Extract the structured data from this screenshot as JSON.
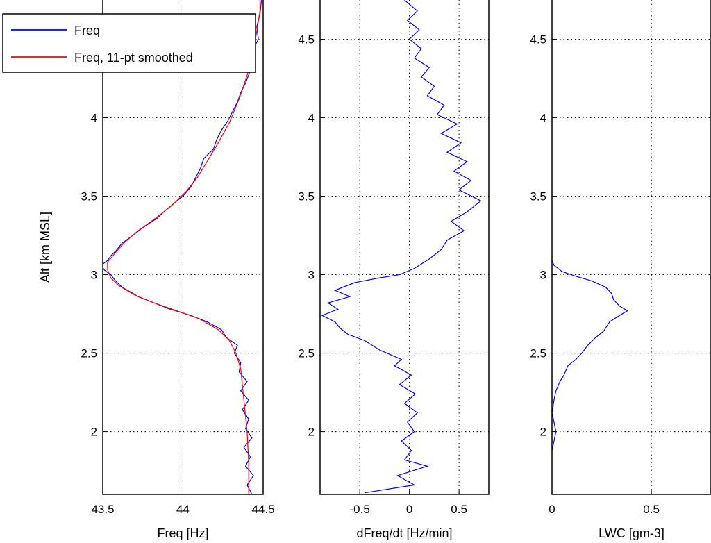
{
  "chart_data": [
    {
      "type": "line",
      "xlabel": "Freq [Hz]",
      "ylabel": "Alt [km MSL]",
      "xlim": [
        43.5,
        44.5
      ],
      "ylim": [
        1.6,
        4.75
      ],
      "xticks": [
        43.5,
        44,
        44.5
      ],
      "xtick_labels": [
        "43.5",
        "44",
        "44.5"
      ],
      "yticks": [
        2,
        2.5,
        3,
        3.5,
        4,
        4.5
      ],
      "ytick_labels": [
        "2",
        "2.5",
        "3",
        "3.5",
        "4",
        "4.5"
      ],
      "grid": true,
      "legend": {
        "placement": "top-left",
        "entries": [
          "Freq",
          "Freq, 11-pt smoothed"
        ]
      },
      "series": [
        {
          "name": "Freq",
          "color": "#0000ff",
          "points": [
            [
              44.43,
              1.6
            ],
            [
              44.4,
              1.66
            ],
            [
              44.44,
              1.72
            ],
            [
              44.39,
              1.78
            ],
            [
              44.42,
              1.84
            ],
            [
              44.38,
              1.9
            ],
            [
              44.43,
              1.96
            ],
            [
              44.39,
              2.02
            ],
            [
              44.41,
              2.08
            ],
            [
              44.37,
              2.14
            ],
            [
              44.41,
              2.2
            ],
            [
              44.36,
              2.26
            ],
            [
              44.4,
              2.32
            ],
            [
              44.35,
              2.38
            ],
            [
              44.36,
              2.44
            ],
            [
              44.32,
              2.5
            ],
            [
              44.34,
              2.55
            ],
            [
              44.27,
              2.6
            ],
            [
              44.24,
              2.65
            ],
            [
              44.15,
              2.7
            ],
            [
              44.05,
              2.74
            ],
            [
              43.92,
              2.78
            ],
            [
              43.82,
              2.82
            ],
            [
              43.72,
              2.86
            ],
            [
              43.69,
              2.88
            ],
            [
              43.62,
              2.92
            ],
            [
              43.58,
              2.96
            ],
            [
              43.55,
              3.0
            ],
            [
              43.51,
              3.03
            ],
            [
              43.49,
              3.06
            ],
            [
              43.53,
              3.09
            ],
            [
              43.55,
              3.12
            ],
            [
              43.58,
              3.15
            ],
            [
              43.62,
              3.2
            ],
            [
              43.7,
              3.26
            ],
            [
              43.75,
              3.3
            ],
            [
              43.84,
              3.36
            ],
            [
              43.88,
              3.4
            ],
            [
              43.95,
              3.46
            ],
            [
              44.0,
              3.5
            ],
            [
              44.05,
              3.56
            ],
            [
              44.08,
              3.62
            ],
            [
              44.11,
              3.68
            ],
            [
              44.13,
              3.74
            ],
            [
              44.19,
              3.8
            ],
            [
              44.21,
              3.86
            ],
            [
              44.24,
              3.92
            ],
            [
              44.28,
              3.98
            ],
            [
              44.31,
              4.04
            ],
            [
              44.34,
              4.1
            ],
            [
              44.36,
              4.16
            ],
            [
              44.39,
              4.22
            ],
            [
              44.42,
              4.3
            ],
            [
              44.44,
              4.36
            ],
            [
              44.43,
              4.42
            ],
            [
              44.47,
              4.5
            ],
            [
              44.46,
              4.58
            ],
            [
              44.48,
              4.66
            ],
            [
              44.49,
              4.75
            ]
          ]
        },
        {
          "name": "Freq, 11-pt smoothed",
          "color": "#ff0000",
          "points": [
            [
              44.41,
              1.6
            ],
            [
              44.41,
              1.8
            ],
            [
              44.4,
              2.0
            ],
            [
              44.38,
              2.2
            ],
            [
              44.36,
              2.4
            ],
            [
              44.33,
              2.5
            ],
            [
              44.29,
              2.58
            ],
            [
              44.22,
              2.65
            ],
            [
              44.1,
              2.72
            ],
            [
              43.96,
              2.77
            ],
            [
              43.82,
              2.82
            ],
            [
              43.7,
              2.87
            ],
            [
              43.6,
              2.93
            ],
            [
              43.55,
              2.98
            ],
            [
              43.53,
              3.03
            ],
            [
              43.53,
              3.08
            ],
            [
              43.57,
              3.13
            ],
            [
              43.63,
              3.2
            ],
            [
              43.72,
              3.28
            ],
            [
              43.83,
              3.36
            ],
            [
              43.93,
              3.44
            ],
            [
              44.02,
              3.53
            ],
            [
              44.09,
              3.62
            ],
            [
              44.15,
              3.72
            ],
            [
              44.22,
              3.84
            ],
            [
              44.29,
              3.97
            ],
            [
              44.35,
              4.12
            ],
            [
              44.4,
              4.27
            ],
            [
              44.44,
              4.42
            ],
            [
              44.46,
              4.55
            ],
            [
              44.48,
              4.68
            ],
            [
              44.48,
              4.75
            ]
          ]
        }
      ]
    },
    {
      "type": "line",
      "xlabel": "dFreq/dt [Hz/min]",
      "ylabel": "",
      "xlim": [
        -0.9,
        0.8
      ],
      "ylim": [
        1.6,
        4.75
      ],
      "xticks": [
        -0.5,
        0,
        0.5
      ],
      "xtick_labels": [
        "-0.5",
        "0",
        "0.5"
      ],
      "yticks": [
        2,
        2.5,
        3,
        3.5,
        4,
        4.5
      ],
      "ytick_labels": [
        "2",
        "2.5",
        "3",
        "3.5",
        "4",
        "4.5"
      ],
      "grid": true,
      "series": [
        {
          "color": "#0000ff",
          "points": [
            [
              -0.45,
              1.61
            ],
            [
              0.05,
              1.66
            ],
            [
              -0.12,
              1.72
            ],
            [
              0.18,
              1.78
            ],
            [
              -0.05,
              1.82
            ],
            [
              0.02,
              1.88
            ],
            [
              -0.08,
              1.94
            ],
            [
              0.05,
              2.0
            ],
            [
              -0.02,
              2.06
            ],
            [
              0.08,
              2.12
            ],
            [
              -0.05,
              2.18
            ],
            [
              0.06,
              2.24
            ],
            [
              -0.1,
              2.3
            ],
            [
              0.02,
              2.36
            ],
            [
              -0.15,
              2.42
            ],
            [
              -0.08,
              2.46
            ],
            [
              -0.3,
              2.52
            ],
            [
              -0.45,
              2.58
            ],
            [
              -0.62,
              2.62
            ],
            [
              -0.7,
              2.66
            ],
            [
              -0.75,
              2.7
            ],
            [
              -0.88,
              2.74
            ],
            [
              -0.72,
              2.78
            ],
            [
              -0.82,
              2.82
            ],
            [
              -0.6,
              2.86
            ],
            [
              -0.75,
              2.9
            ],
            [
              -0.55,
              2.95
            ],
            [
              -0.3,
              2.98
            ],
            [
              -0.1,
              3.0
            ],
            [
              0.05,
              3.04
            ],
            [
              0.2,
              3.1
            ],
            [
              0.32,
              3.16
            ],
            [
              0.38,
              3.22
            ],
            [
              0.55,
              3.28
            ],
            [
              0.42,
              3.34
            ],
            [
              0.58,
              3.4
            ],
            [
              0.72,
              3.47
            ],
            [
              0.5,
              3.54
            ],
            [
              0.62,
              3.6
            ],
            [
              0.45,
              3.66
            ],
            [
              0.58,
              3.72
            ],
            [
              0.38,
              3.78
            ],
            [
              0.52,
              3.84
            ],
            [
              0.32,
              3.9
            ],
            [
              0.48,
              3.96
            ],
            [
              0.28,
              4.02
            ],
            [
              0.35,
              4.08
            ],
            [
              0.18,
              4.14
            ],
            [
              0.25,
              4.2
            ],
            [
              0.12,
              4.26
            ],
            [
              0.2,
              4.32
            ],
            [
              0.05,
              4.38
            ],
            [
              0.12,
              4.44
            ],
            [
              0.0,
              4.5
            ],
            [
              0.1,
              4.56
            ],
            [
              -0.02,
              4.62
            ],
            [
              0.08,
              4.68
            ],
            [
              -0.05,
              4.75
            ]
          ]
        }
      ]
    },
    {
      "type": "line",
      "xlabel": "LWC [gm-3]",
      "ylabel": "",
      "xlim": [
        0,
        0.8
      ],
      "ylim": [
        1.6,
        4.75
      ],
      "xticks": [
        0,
        0.5
      ],
      "xtick_labels": [
        "0",
        "0.5"
      ],
      "yticks": [
        2,
        2.5,
        3,
        3.5,
        4,
        4.5
      ],
      "ytick_labels": [
        "2",
        "2.5",
        "3",
        "3.5",
        "4",
        "4.5"
      ],
      "grid": true,
      "series": [
        {
          "color": "#0000ff",
          "points": [
            [
              0.0,
              1.88
            ],
            [
              0.01,
              1.94
            ],
            [
              0.02,
              2.0
            ],
            [
              0.01,
              2.06
            ],
            [
              0.0,
              2.12
            ],
            [
              0.01,
              2.2
            ],
            [
              0.02,
              2.26
            ],
            [
              0.04,
              2.32
            ],
            [
              0.06,
              2.36
            ],
            [
              0.08,
              2.42
            ],
            [
              0.12,
              2.46
            ],
            [
              0.15,
              2.5
            ],
            [
              0.18,
              2.55
            ],
            [
              0.22,
              2.6
            ],
            [
              0.26,
              2.64
            ],
            [
              0.29,
              2.7
            ],
            [
              0.34,
              2.74
            ],
            [
              0.38,
              2.77
            ],
            [
              0.34,
              2.8
            ],
            [
              0.31,
              2.84
            ],
            [
              0.3,
              2.88
            ],
            [
              0.27,
              2.92
            ],
            [
              0.2,
              2.96
            ],
            [
              0.12,
              2.99
            ],
            [
              0.05,
              3.02
            ],
            [
              0.01,
              3.06
            ],
            [
              0.0,
              3.09
            ]
          ]
        }
      ]
    }
  ]
}
